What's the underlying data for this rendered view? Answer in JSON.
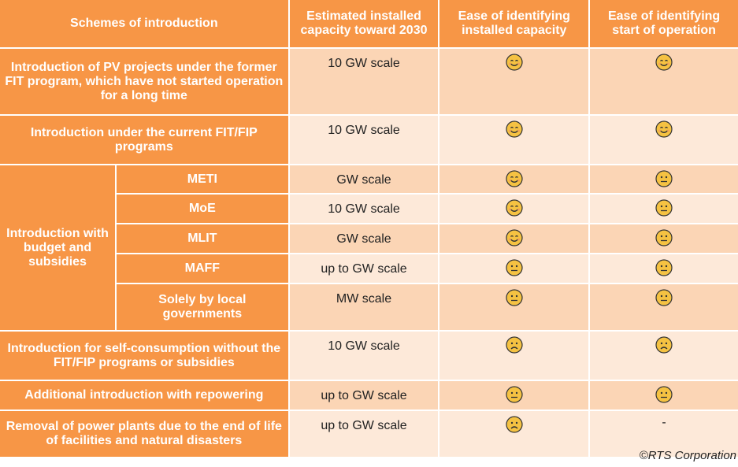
{
  "headers": [
    "Schemes of introduction",
    "Estimated installed capacity toward 2030",
    "Ease of identifying installed capacity",
    "Ease of identifying start of operation"
  ],
  "group_label": "Introduction with budget and subsidies",
  "rows": [
    {
      "scheme": "Introduction of PV projects under the former FIT program, which have not started operation for a long time",
      "capacity": "10 GW scale",
      "installed": "smile",
      "start": "smile"
    },
    {
      "scheme": "Introduction under the current FIT/FIP programs",
      "capacity": "10 GW scale",
      "installed": "smile",
      "start": "smile"
    },
    {
      "scheme": "METI",
      "capacity": "GW scale",
      "installed": "smile",
      "start": "neutral"
    },
    {
      "scheme": "MoE",
      "capacity": "10 GW scale",
      "installed": "smile",
      "start": "neutral"
    },
    {
      "scheme": "MLIT",
      "capacity": "GW scale",
      "installed": "smile",
      "start": "neutral"
    },
    {
      "scheme": "MAFF",
      "capacity": "up to GW scale",
      "installed": "neutral",
      "start": "neutral"
    },
    {
      "scheme": "Solely by local governments",
      "capacity": "MW scale",
      "installed": "neutral",
      "start": "neutral"
    },
    {
      "scheme": "Introduction for self-consumption without the FIT/FIP programs or subsidies",
      "capacity": "10 GW scale",
      "installed": "frown",
      "start": "frown"
    },
    {
      "scheme": "Additional introduction with repowering",
      "capacity": "up to GW scale",
      "installed": "neutral",
      "start": "neutral"
    },
    {
      "scheme": "Removal of power plants due to the end of life of facilities and natural disasters",
      "capacity": "up to GW scale",
      "installed": "frown",
      "start": "-"
    }
  ],
  "copyright": "©RTS Corporation",
  "colors": {
    "header": "#f79646",
    "row_dark": "#fbd5b5",
    "row_light": "#fde9d9",
    "face": "#f5c242"
  }
}
